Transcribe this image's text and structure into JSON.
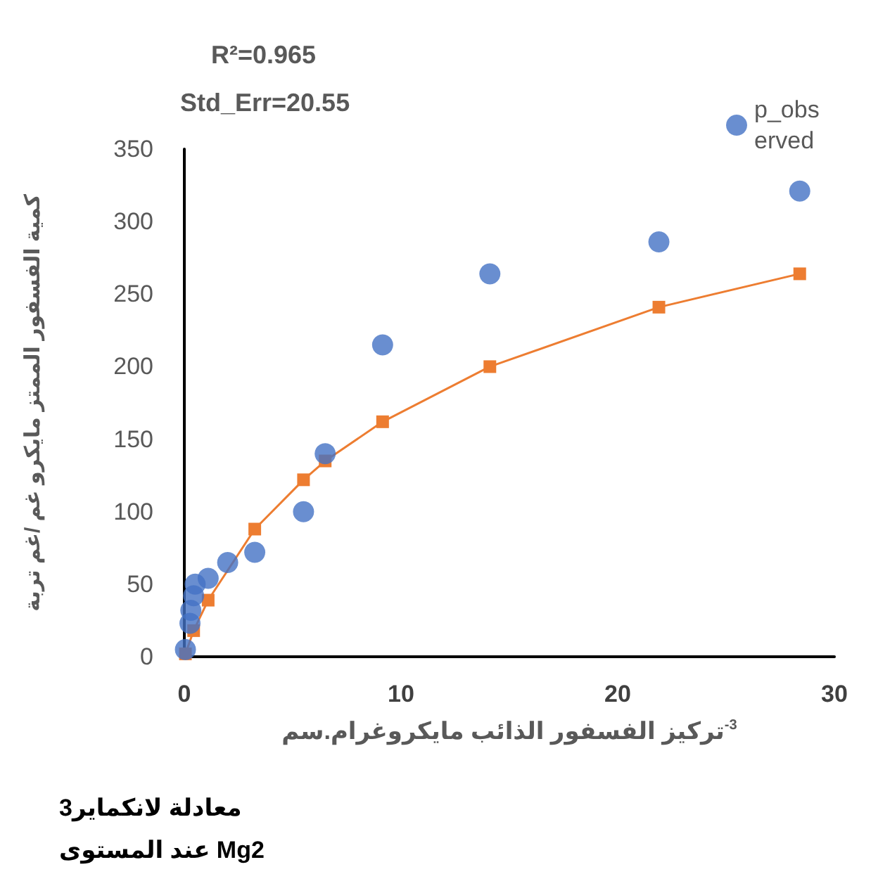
{
  "chart_data": {
    "type": "scatter",
    "xlabel": "تركيز الفسفور الذائب مايكروغرام.سم$^{-3}$",
    "ylabel": "كمية الفسفور الممتز مايكرو غم /غم تربة",
    "annotations": [
      "R²=0.965",
      "Std_Err=20.55",
      "معادلة لانكماير3",
      "عند المستوى Mg2"
    ],
    "x": [
      0.05,
      0.26,
      0.3,
      0.43,
      0.5,
      1.1,
      2,
      3.25,
      5.5,
      6.5,
      9.15,
      14.1,
      21.9,
      28.4
    ],
    "series": [
      {
        "name": "p_observed",
        "marker": "circle",
        "color": "#4472c4",
        "values": [
          5,
          23,
          32,
          42,
          50,
          54,
          65,
          72,
          100,
          140,
          215,
          264,
          286,
          321
        ]
      },
      {
        "type": "line",
        "marker": "square",
        "color": "#ed7d31",
        "values": [
          2,
          null,
          null,
          18,
          null,
          39,
          null,
          88,
          122,
          135,
          162,
          200,
          241,
          264
        ]
      }
    ],
    "xlim": [
      0,
      30
    ],
    "xticks": [
      0,
      10,
      20,
      30
    ],
    "ylim": [
      0,
      350
    ],
    "yticks": [
      0,
      50,
      100,
      150,
      200,
      250,
      300,
      350
    ],
    "grid": false,
    "legend": "top right"
  }
}
